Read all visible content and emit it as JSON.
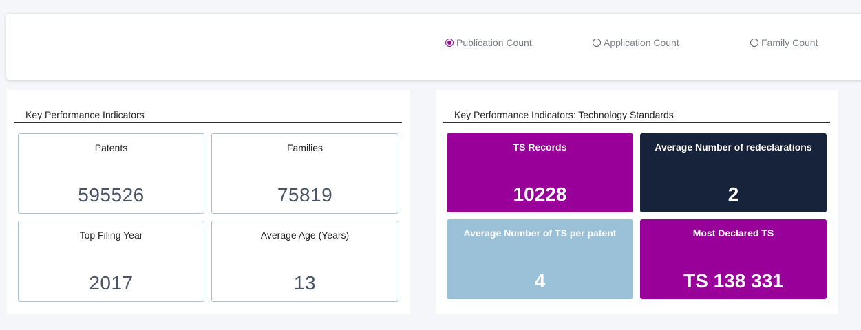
{
  "filters": {
    "options": [
      {
        "label": "Publication Count",
        "checked": true
      },
      {
        "label": "Application Count",
        "checked": false
      },
      {
        "label": "Family Count",
        "checked": false
      }
    ]
  },
  "kpi": {
    "title": "Key Performance Indicators",
    "cards": [
      {
        "label": "Patents",
        "value": "595526"
      },
      {
        "label": "Families",
        "value": "75819"
      },
      {
        "label": "Top Filing Year",
        "value": "2017"
      },
      {
        "label": "Average Age (Years)",
        "value": "13"
      }
    ]
  },
  "ts": {
    "title": "Key Performance Indicators: Technology Standards",
    "cards": [
      {
        "label": "TS Records",
        "value": "10228",
        "color": "#990099"
      },
      {
        "label": "Average Number of redeclarations",
        "value": "2",
        "color": "#17223b"
      },
      {
        "label": "Average Number of TS per patent",
        "value": "4",
        "color": "#9bc1d9"
      },
      {
        "label": "Most Declared TS",
        "value": "TS 138 331",
        "color": "#990099"
      }
    ]
  },
  "colors": {
    "accent": "#990099",
    "navy": "#17223b",
    "light_blue": "#9bc1d9",
    "value_text": "#4a5568"
  }
}
